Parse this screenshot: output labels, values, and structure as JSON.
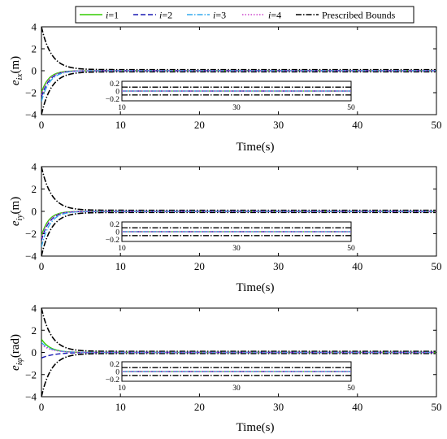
{
  "legend": {
    "entries": [
      {
        "prefix": "i",
        "text": "=1",
        "color": "#33cc00",
        "dash": "solid"
      },
      {
        "prefix": "i",
        "text": "=2",
        "color": "#1a1ab3",
        "dash": "dash"
      },
      {
        "prefix": "i",
        "text": "=3",
        "color": "#33aaee",
        "dash": "dashdot"
      },
      {
        "prefix": "i",
        "text": "=4",
        "color": "#cc44cc",
        "dash": "dot"
      },
      {
        "prefix": "",
        "text": "Prescribed Bounds",
        "color": "#000000",
        "dash": "dashdot"
      }
    ]
  },
  "chart_data": [
    {
      "type": "line",
      "ylabel_symbol": "e",
      "ylabel_sub": "ix",
      "ylabel_unit": "(m)",
      "xlabel": "Time(s)",
      "xlim": [
        0,
        50
      ],
      "ylim": [
        -4,
        4
      ],
      "xticks": [
        0,
        10,
        20,
        30,
        40,
        50
      ],
      "yticks": [
        4,
        2,
        0,
        -2,
        -4
      ],
      "bounds": {
        "rho0": 4.0,
        "rho_inf": 0.1,
        "decay": 0.8
      },
      "series": [
        {
          "name": "i=1",
          "initial": -2.0,
          "decay": 1.1
        },
        {
          "name": "i=2",
          "initial": -2.4,
          "decay": 1.0
        },
        {
          "name": "i=3",
          "initial": -2.8,
          "decay": 0.95
        },
        {
          "name": "i=4",
          "initial": -2.2,
          "decay": 1.05
        }
      ],
      "inset": {
        "xlim": [
          10,
          50
        ],
        "ylim": [
          -0.25,
          0.25
        ],
        "xticks": [
          10,
          30,
          50
        ],
        "yticks": [
          0.2,
          0,
          -0.2
        ],
        "ytick_labels": [
          "0.2",
          "0",
          "−0.2"
        ]
      }
    },
    {
      "type": "line",
      "ylabel_symbol": "e",
      "ylabel_sub": "iy",
      "ylabel_unit": "(m)",
      "xlabel": "Time(s)",
      "xlim": [
        0,
        50
      ],
      "ylim": [
        -4,
        4
      ],
      "xticks": [
        0,
        10,
        20,
        30,
        40,
        50
      ],
      "yticks": [
        4,
        2,
        0,
        -2,
        -4
      ],
      "bounds": {
        "rho0": 4.0,
        "rho_inf": 0.1,
        "decay": 0.8
      },
      "series": [
        {
          "name": "i=1",
          "initial": -2.2,
          "decay": 1.1
        },
        {
          "name": "i=2",
          "initial": -2.6,
          "decay": 1.0
        },
        {
          "name": "i=3",
          "initial": -3.2,
          "decay": 0.95
        },
        {
          "name": "i=4",
          "initial": -2.4,
          "decay": 1.05
        }
      ],
      "inset": {
        "xlim": [
          10,
          50
        ],
        "ylim": [
          -0.25,
          0.25
        ],
        "xticks": [
          10,
          30,
          50
        ],
        "yticks": [
          0.2,
          0,
          -0.2
        ],
        "ytick_labels": [
          "0.2",
          "0",
          "−0.2"
        ]
      }
    },
    {
      "type": "line",
      "ylabel_symbol": "e",
      "ylabel_sub": "iφ",
      "ylabel_unit": "(rad)",
      "xlabel": "Time(s)",
      "xlim": [
        0,
        50
      ],
      "ylim": [
        -4,
        4
      ],
      "xticks": [
        0,
        10,
        20,
        30,
        40,
        50
      ],
      "yticks": [
        4,
        2,
        0,
        -2,
        -4
      ],
      "bounds": {
        "rho0": 4.0,
        "rho_inf": 0.1,
        "decay": 0.8
      },
      "series": [
        {
          "name": "i=1",
          "initial": 1.2,
          "decay": 0.9
        },
        {
          "name": "i=2",
          "initial": -0.5,
          "decay": 0.6
        },
        {
          "name": "i=3",
          "initial": 0.9,
          "decay": 0.85
        },
        {
          "name": "i=4",
          "initial": 0.7,
          "decay": 0.8
        }
      ],
      "inset": {
        "xlim": [
          10,
          50
        ],
        "ylim": [
          -0.25,
          0.25
        ],
        "xticks": [
          10,
          30,
          50
        ],
        "yticks": [
          0.2,
          0,
          -0.2
        ],
        "ytick_labels": [
          "0.2",
          "0",
          "−0.2"
        ]
      }
    }
  ]
}
